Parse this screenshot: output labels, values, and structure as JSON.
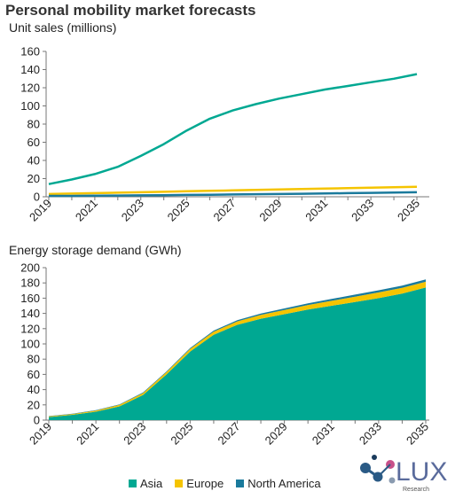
{
  "header": {
    "title": "Personal mobility market forecasts",
    "top_ylabel": "Unit sales (millions)",
    "bottom_ylabel": "Energy storage demand (GWh)"
  },
  "colors": {
    "asia": "#00A892",
    "europe": "#F5C400",
    "north_america": "#1A7A9C"
  },
  "logo": {
    "text": "LUX",
    "sub": "Research"
  },
  "chart_data": [
    {
      "type": "line",
      "title": "",
      "ylabel": "Unit sales (millions)",
      "ylim": [
        0,
        160
      ],
      "yticks": [
        0,
        20,
        40,
        60,
        80,
        100,
        120,
        140,
        160
      ],
      "x": [
        2019,
        2020,
        2021,
        2022,
        2023,
        2024,
        2025,
        2026,
        2027,
        2028,
        2029,
        2030,
        2031,
        2032,
        2033,
        2034,
        2035
      ],
      "xticks": [
        "2019",
        "2021",
        "2023",
        "2025",
        "2027",
        "2029",
        "2031",
        "2033",
        "2035"
      ],
      "grid": false,
      "series": [
        {
          "name": "Asia",
          "color": "#00A892",
          "values": [
            14,
            19,
            25,
            33,
            45,
            58,
            73,
            86,
            95,
            102,
            108,
            113,
            118,
            122,
            126,
            130,
            135
          ]
        },
        {
          "name": "Europe",
          "color": "#F5C400",
          "values": [
            3,
            3.5,
            4,
            4.5,
            5,
            5.5,
            6,
            6.5,
            7,
            7.5,
            8,
            8.5,
            9,
            9.5,
            10,
            10.5,
            11
          ]
        },
        {
          "name": "North America",
          "color": "#1A7A9C",
          "values": [
            1,
            1,
            1.2,
            1.4,
            1.6,
            1.8,
            2,
            2.2,
            2.5,
            2.8,
            3,
            3.3,
            3.6,
            4,
            4.3,
            4.6,
            5
          ]
        }
      ]
    },
    {
      "type": "area",
      "title": "",
      "ylabel": "Energy storage demand (GWh)",
      "ylim": [
        0,
        200
      ],
      "yticks": [
        0,
        20,
        40,
        60,
        80,
        100,
        120,
        140,
        160,
        180,
        200
      ],
      "x": [
        2019,
        2020,
        2021,
        2022,
        2023,
        2024,
        2025,
        2026,
        2027,
        2028,
        2029,
        2030,
        2031,
        2032,
        2033,
        2034,
        2035
      ],
      "xticks": [
        "2019",
        "2021",
        "2023",
        "2025",
        "2027",
        "2029",
        "2031",
        "2033",
        "2035"
      ],
      "stacked": true,
      "grid": false,
      "legend_position": "bottom",
      "series": [
        {
          "name": "Asia",
          "color": "#00A892",
          "values": [
            4,
            7,
            11,
            18,
            33,
            60,
            90,
            112,
            125,
            133,
            139,
            145,
            150,
            155,
            160,
            166,
            174
          ]
        },
        {
          "name": "Europe",
          "color": "#F5C400",
          "values": [
            1,
            1,
            1.5,
            2,
            2.5,
            3,
            3.5,
            4,
            4.5,
            5,
            5.5,
            6,
            6.5,
            7,
            7.5,
            7.5,
            7.5
          ]
        },
        {
          "name": "North America",
          "color": "#1A7A9C",
          "values": [
            0.3,
            0.4,
            0.5,
            0.6,
            0.8,
            1,
            1.2,
            1.4,
            1.6,
            1.8,
            2,
            2.2,
            2.4,
            2.6,
            2.8,
            3,
            3.2
          ]
        }
      ]
    }
  ]
}
